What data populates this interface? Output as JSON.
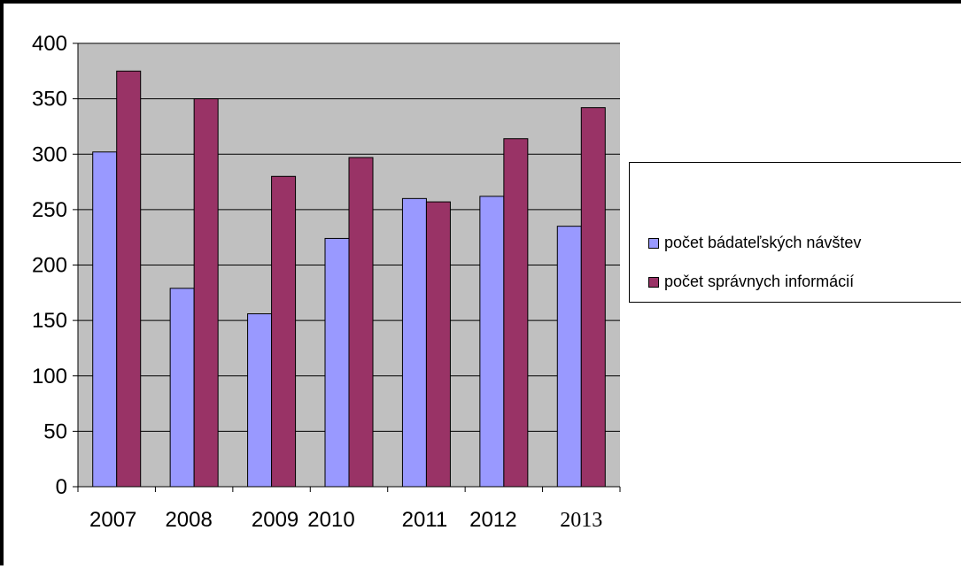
{
  "chart_data": {
    "type": "bar",
    "title": "",
    "xlabel": "",
    "ylabel": "",
    "categories": [
      "2007",
      "2008",
      "2009",
      "2010",
      "2011",
      "2012",
      "2013"
    ],
    "series": [
      {
        "name": "počet bádateľských návštev",
        "values": [
          302,
          179,
          156,
          224,
          260,
          262,
          235
        ],
        "color": "#9999ff"
      },
      {
        "name": "počet správnych informácií",
        "values": [
          375,
          350,
          280,
          297,
          257,
          314,
          342
        ],
        "color": "#993366"
      }
    ],
    "ylim": [
      0,
      400
    ],
    "yticks": [
      "0",
      "50",
      "100",
      "150",
      "200",
      "250",
      "300",
      "350",
      "400"
    ],
    "grid": true,
    "plot_background": "#c0c0c0",
    "legend_position": "right"
  }
}
